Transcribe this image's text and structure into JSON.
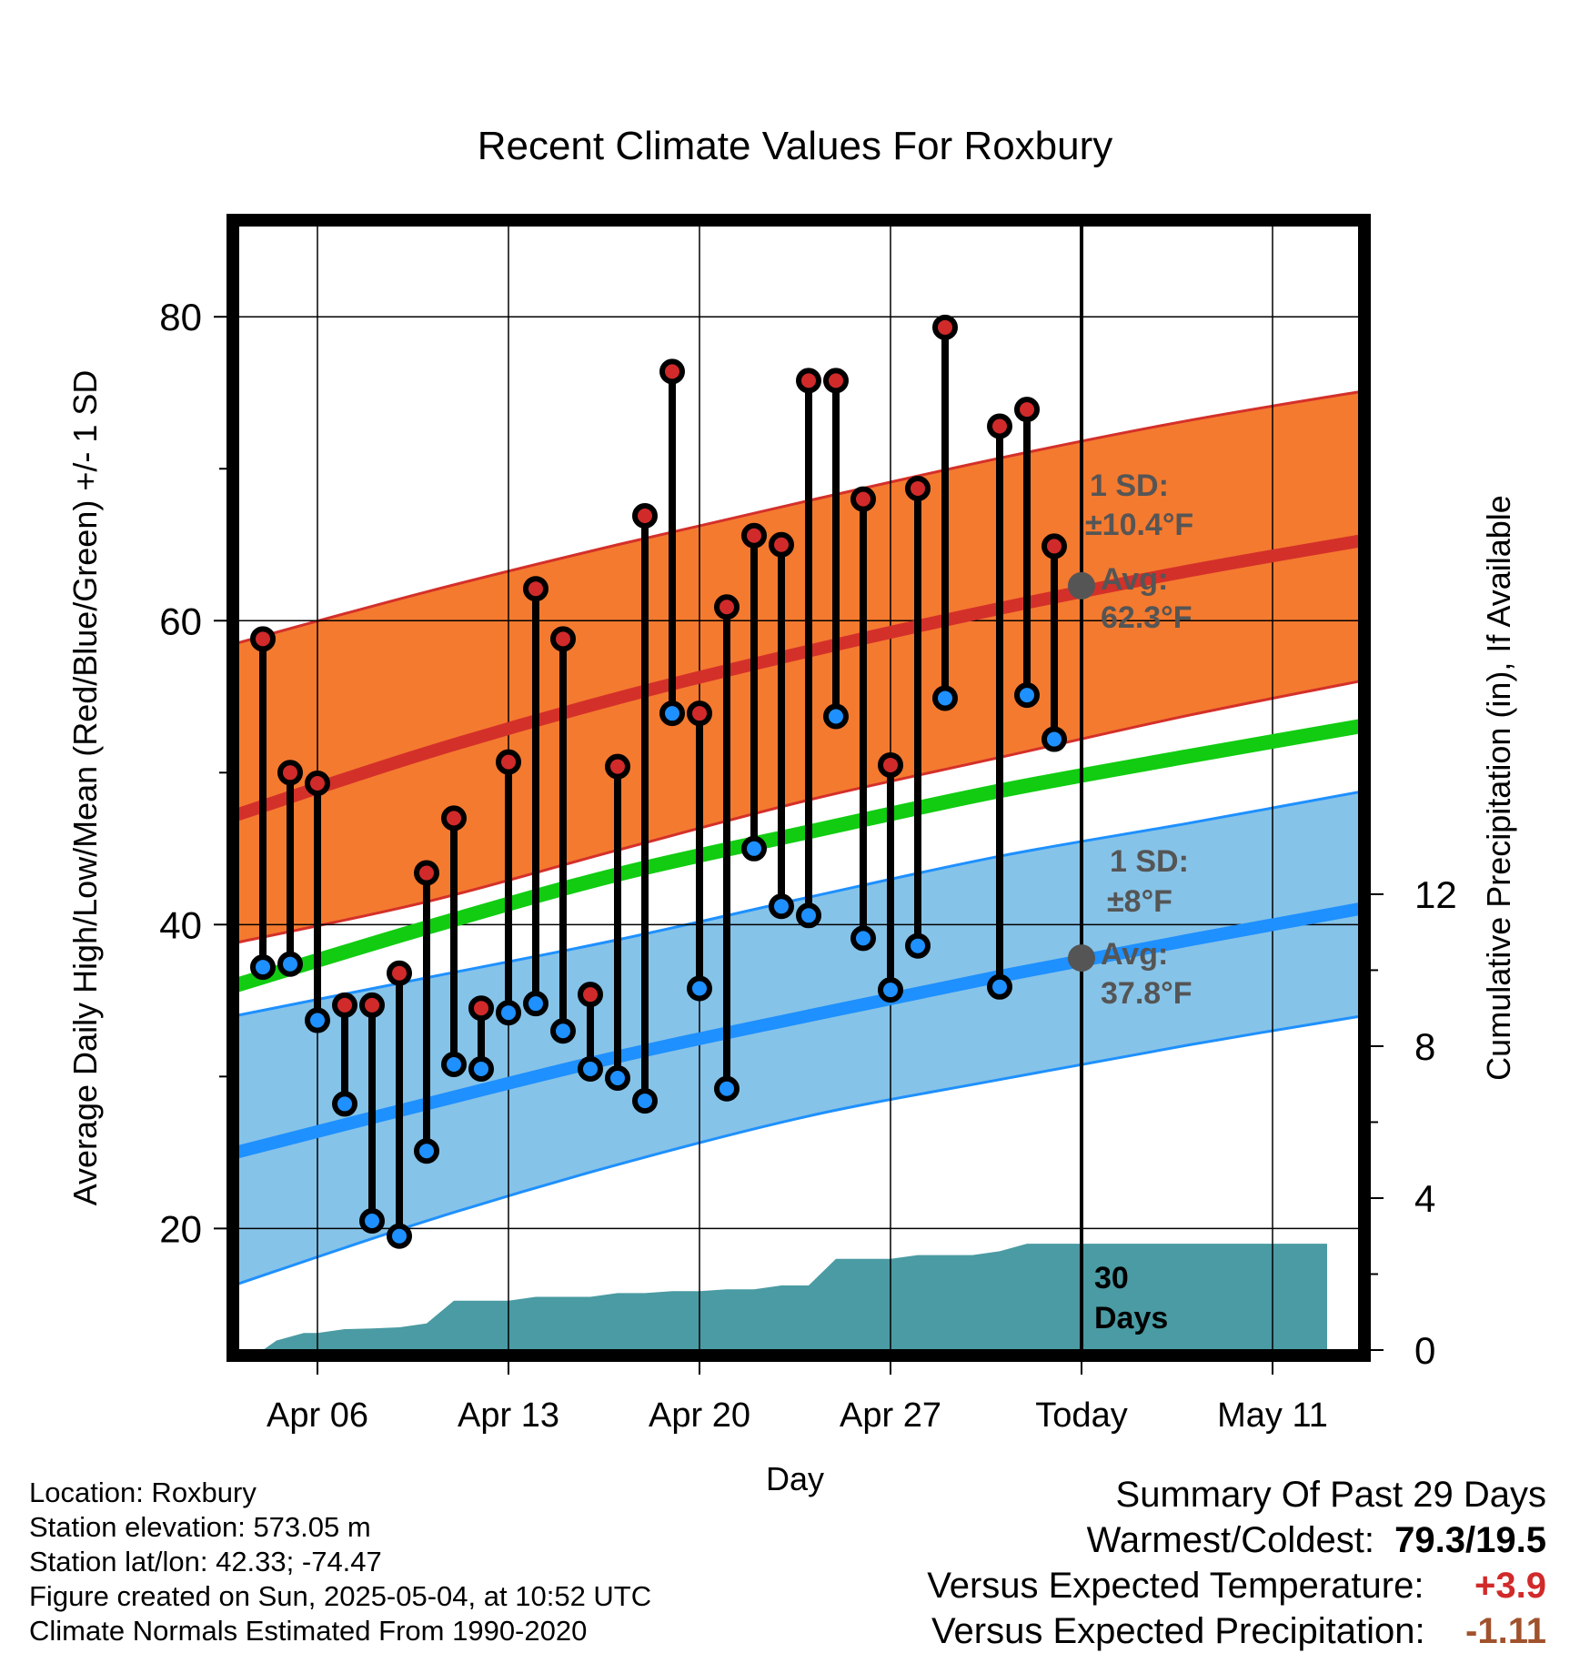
{
  "chart_data": {
    "type": "line",
    "title": "Recent Climate Values For Roxbury",
    "xlabel": "Day",
    "ylabel": "Average Daily High/Low/Mean (Red/Blue/Green) +/- 1 SD",
    "y2label": "Cumulative Precipitation (in), If Available",
    "ylim": [
      12,
      86
    ],
    "y2lim": [
      0,
      29.6
    ],
    "yticks": [
      "20",
      "40",
      "60",
      "80"
    ],
    "y2ticks": [
      "0",
      "4",
      "8",
      "12"
    ],
    "xlim": [
      2.2,
      13.3
    ],
    "xticks": [
      {
        "day": 6,
        "label": "Apr 06"
      },
      {
        "day": 13,
        "label": "Apr 13"
      },
      {
        "day": 20,
        "label": "Apr 20"
      },
      {
        "day": 27,
        "label": "Apr 27"
      },
      {
        "day": 34,
        "label": "Today"
      },
      {
        "day": 41,
        "label": "May 11"
      }
    ],
    "today_day": 34,
    "colors": {
      "high_band": "#f47a2f",
      "high_avg": "#d4302a",
      "low_band": "#86c3e8",
      "low_avg": "#1e90ff",
      "mean_line": "#11cc11",
      "precip": "#4a9ba3",
      "marker_high": "#d12a2a",
      "marker_low": "#1e90ff",
      "annotation": "#555555"
    },
    "normals": {
      "days": [
        3,
        10,
        17,
        24,
        31,
        38,
        45
      ],
      "high_avg": [
        47.2,
        51.3,
        54.9,
        58.0,
        60.8,
        63.3,
        65.5
      ],
      "high_sd_upper": [
        58.5,
        61.9,
        65.0,
        67.9,
        70.7,
        73.2,
        75.3
      ],
      "high_sd_lower": [
        38.8,
        41.5,
        44.9,
        48.2,
        51.0,
        53.8,
        56.3
      ],
      "low_avg": [
        25.0,
        28.2,
        31.3,
        34.0,
        36.6,
        39.0,
        41.3
      ],
      "low_sd_upper": [
        34.0,
        36.5,
        39.0,
        41.8,
        44.5,
        46.7,
        49.0
      ],
      "low_sd_lower": [
        16.3,
        20.5,
        24.2,
        27.4,
        29.8,
        32.1,
        34.2
      ],
      "mean": [
        36.0,
        39.8,
        43.3,
        46.1,
        48.8,
        51.1,
        53.3
      ]
    },
    "daily": {
      "days": [
        4,
        5,
        6,
        7,
        8,
        9,
        10,
        11,
        12,
        13,
        14,
        15,
        16,
        17,
        18,
        19,
        20,
        21,
        22,
        23,
        24,
        25,
        26,
        27,
        28,
        29,
        30,
        31,
        32,
        33
      ],
      "high": [
        58.8,
        50.0,
        49.3,
        34.7,
        34.7,
        36.8,
        43.4,
        47.0,
        34.5,
        50.7,
        62.1,
        58.8,
        35.4,
        50.4,
        66.9,
        76.4,
        53.9,
        60.9,
        65.6,
        65.0,
        75.8,
        75.8,
        68.0,
        50.5,
        68.7,
        79.3,
        null,
        72.8,
        73.9,
        64.9
      ],
      "low": [
        37.2,
        37.4,
        33.7,
        28.2,
        20.5,
        19.5,
        25.1,
        30.8,
        30.5,
        34.2,
        34.8,
        33.0,
        30.5,
        29.9,
        28.4,
        53.9,
        35.8,
        29.2,
        45.0,
        41.2,
        40.6,
        53.7,
        39.1,
        35.7,
        38.6,
        54.9,
        null,
        35.9,
        55.1,
        52.2
      ]
    },
    "precip_cumulative": {
      "days": [
        3,
        4,
        4.5,
        5.5,
        6,
        7,
        8,
        9,
        10,
        11,
        12,
        13,
        14,
        15,
        16,
        17,
        18,
        19,
        20,
        21,
        22,
        23,
        24,
        25,
        26,
        27,
        28,
        29,
        30,
        31,
        32,
        33,
        34,
        43
      ],
      "values": [
        0,
        0,
        0.25,
        0.45,
        0.45,
        0.55,
        0.57,
        0.6,
        0.7,
        1.3,
        1.3,
        1.3,
        1.4,
        1.4,
        1.4,
        1.5,
        1.5,
        1.55,
        1.55,
        1.6,
        1.6,
        1.7,
        1.7,
        2.4,
        2.4,
        2.4,
        2.5,
        2.5,
        2.5,
        2.6,
        2.8,
        2.8,
        2.8,
        2.8
      ]
    },
    "annotations": {
      "high_sd_label": "1 SD:",
      "high_sd_value": "±10.4°F",
      "high_avg_label": "Avg:",
      "high_avg_value": "62.3°F",
      "high_avg_today": 62.3,
      "low_sd_label": "1 SD:",
      "low_sd_value": "±8°F",
      "low_avg_label": "Avg:",
      "low_avg_value": "37.8°F",
      "low_avg_today": 37.8,
      "days_count": "30",
      "days_word": "Days"
    }
  },
  "station": {
    "location": "Location: Roxbury",
    "elevation": "Station elevation: 573.05 m",
    "latlon": "Station lat/lon: 42.33; -74.47",
    "created": "Figure created on Sun, 2025-05-04, at 10:52 UTC",
    "normals": "Climate Normals Estimated From 1990-2020"
  },
  "summary": {
    "title": "Summary Of Past 29 Days",
    "warm_cold_label": "Warmest/Coldest:",
    "warm_cold_value": "79.3/19.5",
    "temp_label": "Versus Expected Temperature:",
    "temp_value": "+3.9",
    "temp_color": "#d12a2a",
    "precip_label": "Versus Expected Precipitation:",
    "precip_value": "-1.11",
    "precip_color": "#a0522d"
  }
}
